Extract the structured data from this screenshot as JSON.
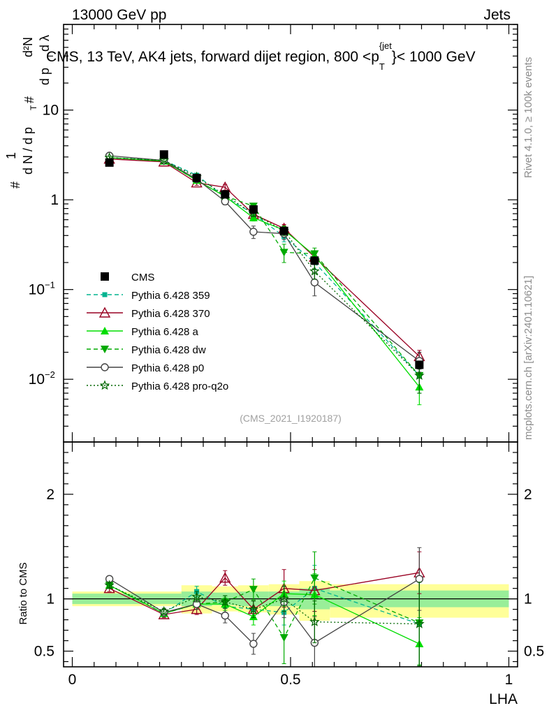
{
  "header": {
    "left": "13000 GeV pp",
    "right": "Jets"
  },
  "chart_data": [
    {
      "type": "line",
      "title": "CMS, 13 TeV, AK4 jets, forward dijet region, 800 <p_T^{jet}< 1000 GeV",
      "title_main": "CMS, 13 TeV, AK4 jets, forward dijet region, 800 <p",
      "title_sup": "{jet",
      "title_sub": "T",
      "title_tail": "}< 1000 GeV",
      "ylabel_parts": {
        "one": "1",
        "dn": "d N / d p",
        "t1": "T",
        "d2n": "d²N",
        "dpt": "d p",
        "t2": "T",
        "dl": "d λ",
        "hash": "#"
      },
      "yscale": "log",
      "ylim": [
        0.002,
        90
      ],
      "xlim": [
        -0.02,
        1.02
      ],
      "xlabel": "LHA",
      "ytick_labels": [
        {
          "value": 10,
          "label": "10"
        },
        {
          "value": 1,
          "label": "1"
        },
        {
          "value": 0.1,
          "label": "10",
          "exp": "−1"
        },
        {
          "value": 0.01,
          "label": "10",
          "exp": "−2"
        }
      ],
      "watermark": "(CMS_2021_I1920187)",
      "series": [
        {
          "name": "CMS",
          "color": "#000000",
          "marker": "square",
          "dash": "",
          "line": false,
          "x": [
            0.085,
            0.21,
            0.285,
            0.35,
            0.415,
            0.485,
            0.555,
            0.795
          ],
          "y": [
            2.6,
            3.2,
            1.75,
            1.15,
            0.78,
            0.45,
            0.21,
            0.0145
          ],
          "err": [
            0.15,
            0.15,
            0.1,
            0.08,
            0.05,
            0.04,
            0.02,
            0.0015
          ]
        },
        {
          "name": "Pythia 6.428 359",
          "color": "#00b38f",
          "marker": "square-small",
          "dash": "6,4",
          "line": true,
          "x": [
            0.085,
            0.21,
            0.285,
            0.35,
            0.415,
            0.485,
            0.555,
            0.795
          ],
          "y": [
            2.95,
            2.75,
            1.88,
            1.07,
            0.7,
            0.39,
            0.2,
            0.011
          ],
          "err": [
            0.1,
            0.1,
            0.08,
            0.06,
            0.05,
            0.05,
            0.03,
            0.004
          ]
        },
        {
          "name": "Pythia 6.428 370",
          "color": "#990022",
          "marker": "triangle-open",
          "dash": "",
          "line": true,
          "x": [
            0.085,
            0.21,
            0.285,
            0.35,
            0.415,
            0.485,
            0.555,
            0.795
          ],
          "y": [
            2.85,
            2.65,
            1.55,
            1.38,
            0.69,
            0.48,
            0.23,
            0.018
          ],
          "err": [
            0.1,
            0.1,
            0.1,
            0.1,
            0.05,
            0.05,
            0.03,
            0.003
          ]
        },
        {
          "name": "Pythia 6.428 a",
          "color": "#00dd00",
          "marker": "triangle",
          "dash": "",
          "line": true,
          "x": [
            0.085,
            0.21,
            0.285,
            0.35,
            0.415,
            0.485,
            0.555,
            0.795
          ],
          "y": [
            2.95,
            2.7,
            1.65,
            1.09,
            0.63,
            0.46,
            0.24,
            0.0082
          ],
          "err": [
            0.1,
            0.1,
            0.08,
            0.06,
            0.05,
            0.05,
            0.03,
            0.003
          ]
        },
        {
          "name": "Pythia 6.428 dw",
          "color": "#00aa00",
          "marker": "triangle-down",
          "dash": "6,4",
          "line": true,
          "x": [
            0.085,
            0.21,
            0.285,
            0.35,
            0.415,
            0.485,
            0.555,
            0.795
          ],
          "y": [
            2.95,
            2.7,
            1.65,
            1.1,
            0.85,
            0.26,
            0.25,
            0.011
          ],
          "err": [
            0.1,
            0.1,
            0.08,
            0.06,
            0.06,
            0.06,
            0.04,
            0.004
          ]
        },
        {
          "name": "Pythia 6.428 p0",
          "color": "#444444",
          "marker": "circle-open",
          "dash": "",
          "line": true,
          "x": [
            0.085,
            0.21,
            0.285,
            0.35,
            0.415,
            0.485,
            0.555,
            0.795
          ],
          "y": [
            3.1,
            2.75,
            1.7,
            0.96,
            0.44,
            0.42,
            0.12,
            0.016
          ],
          "err": [
            0.1,
            0.1,
            0.08,
            0.08,
            0.07,
            0.06,
            0.035,
            0.004
          ]
        },
        {
          "name": "Pythia 6.428 pro-q2o",
          "color": "#006600",
          "marker": "star",
          "dash": "2,3",
          "line": true,
          "x": [
            0.085,
            0.21,
            0.285,
            0.35,
            0.415,
            0.485,
            0.555,
            0.795
          ],
          "y": [
            2.95,
            2.75,
            1.8,
            1.12,
            0.7,
            0.45,
            0.16,
            0.011
          ],
          "err": [
            0.1,
            0.1,
            0.08,
            0.06,
            0.05,
            0.05,
            0.03,
            0.004
          ]
        }
      ]
    },
    {
      "type": "line",
      "ylabel": "Ratio to CMS",
      "xlabel": "LHA",
      "ylim": [
        0.35,
        2.5
      ],
      "xlim": [
        -0.02,
        1.02
      ],
      "ytick_labels": [
        {
          "value": 2,
          "label": "2"
        },
        {
          "value": 1,
          "label": "1"
        },
        {
          "value": 0.5,
          "label": "0.5"
        }
      ],
      "xtick_labels": [
        {
          "value": 0,
          "label": "0"
        },
        {
          "value": 0.5,
          "label": "0.5"
        },
        {
          "value": 1,
          "label": "1"
        }
      ],
      "bands": [
        {
          "x0": 0.0,
          "x1": 0.25,
          "inner": [
            0.95,
            1.05
          ],
          "outer": [
            0.93,
            1.07
          ]
        },
        {
          "x0": 0.25,
          "x1": 0.32,
          "inner": [
            0.93,
            1.07
          ],
          "outer": [
            0.86,
            1.13
          ]
        },
        {
          "x0": 0.32,
          "x1": 0.38,
          "inner": [
            0.94,
            1.06
          ],
          "outer": [
            0.88,
            1.12
          ]
        },
        {
          "x0": 0.38,
          "x1": 0.45,
          "inner": [
            0.93,
            1.07
          ],
          "outer": [
            0.87,
            1.13
          ]
        },
        {
          "x0": 0.45,
          "x1": 0.52,
          "inner": [
            0.93,
            1.07
          ],
          "outer": [
            0.85,
            1.14
          ]
        },
        {
          "x0": 0.52,
          "x1": 0.59,
          "inner": [
            0.9,
            1.1
          ],
          "outer": [
            0.79,
            1.17
          ]
        },
        {
          "x0": 0.59,
          "x1": 1.0,
          "inner": [
            0.92,
            1.08
          ],
          "outer": [
            0.82,
            1.14
          ]
        }
      ],
      "series": [
        {
          "name": "Pythia 6.428 359",
          "color": "#00b38f",
          "marker": "square-small",
          "dash": "6,4",
          "x": [
            0.085,
            0.21,
            0.285,
            0.35,
            0.415,
            0.485,
            0.555,
            0.795
          ],
          "y": [
            1.13,
            0.86,
            1.07,
            0.93,
            0.9,
            0.87,
            1.1,
            0.76
          ],
          "err": [
            0.03,
            0.03,
            0.05,
            0.06,
            0.08,
            0.12,
            0.22,
            0.4
          ]
        },
        {
          "name": "Pythia 6.428 370",
          "color": "#990022",
          "marker": "triangle-open",
          "dash": "",
          "x": [
            0.085,
            0.21,
            0.285,
            0.35,
            0.415,
            0.485,
            0.555,
            0.795
          ],
          "y": [
            1.1,
            0.85,
            0.9,
            1.2,
            0.9,
            1.1,
            1.08,
            1.25
          ],
          "err": [
            0.03,
            0.03,
            0.05,
            0.07,
            0.08,
            0.18,
            0.2,
            0.2
          ]
        },
        {
          "name": "Pythia 6.428 a",
          "color": "#00dd00",
          "marker": "triangle",
          "dash": "",
          "x": [
            0.085,
            0.21,
            0.285,
            0.35,
            0.415,
            0.485,
            0.555,
            0.795
          ],
          "y": [
            1.13,
            0.86,
            0.95,
            0.95,
            0.83,
            1.05,
            1.04,
            0.57
          ],
          "err": [
            0.03,
            0.03,
            0.05,
            0.06,
            0.08,
            0.12,
            0.2,
            0.25
          ]
        },
        {
          "name": "Pythia 6.428 dw",
          "color": "#00aa00",
          "marker": "triangle-down",
          "dash": "6,4",
          "x": [
            0.085,
            0.21,
            0.285,
            0.35,
            0.415,
            0.485,
            0.555,
            0.795
          ],
          "y": [
            1.13,
            0.86,
            0.95,
            0.97,
            1.09,
            0.63,
            1.2,
            0.77
          ],
          "err": [
            0.03,
            0.03,
            0.05,
            0.06,
            0.1,
            0.25,
            0.25,
            0.4
          ]
        },
        {
          "name": "Pythia 6.428 p0",
          "color": "#444444",
          "marker": "circle-open",
          "dash": "",
          "x": [
            0.085,
            0.21,
            0.285,
            0.35,
            0.415,
            0.485,
            0.555,
            0.795
          ],
          "y": [
            1.19,
            0.87,
            0.95,
            0.84,
            0.57,
            0.97,
            0.58,
            1.19
          ],
          "err": [
            0.03,
            0.03,
            0.05,
            0.07,
            0.1,
            0.15,
            0.25,
            0.3
          ]
        },
        {
          "name": "Pythia 6.428 pro-q2o",
          "color": "#006600",
          "marker": "star",
          "dash": "2,3",
          "x": [
            0.085,
            0.21,
            0.285,
            0.35,
            0.415,
            0.485,
            0.555,
            0.795
          ],
          "y": [
            1.13,
            0.88,
            1.02,
            0.97,
            0.9,
            1.0,
            0.78,
            0.76
          ],
          "err": [
            0.03,
            0.03,
            0.05,
            0.06,
            0.08,
            0.12,
            0.2,
            0.4
          ]
        }
      ]
    }
  ],
  "side_labels": {
    "rivet": "Rivet 4.1.0, ≥ 100k events",
    "mcplots": "mcplots.cern.ch [arXiv:2401.10621]"
  }
}
